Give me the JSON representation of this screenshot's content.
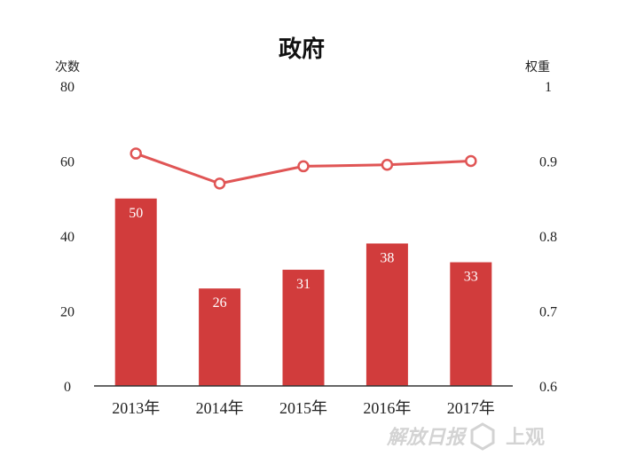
{
  "chart_data": {
    "type": "bar",
    "title": "政府",
    "categories": [
      "2013年",
      "2014年",
      "2015年",
      "2016年",
      "2017年"
    ],
    "series": [
      {
        "type": "bar",
        "axis": "left",
        "values": [
          50,
          26,
          31,
          38,
          33
        ]
      },
      {
        "type": "line",
        "axis": "right",
        "values": [
          0.91,
          0.87,
          0.893,
          0.895,
          0.9
        ]
      }
    ],
    "y_left": {
      "label": "次数",
      "ylim": [
        0,
        80
      ],
      "ticks": [
        "0",
        "20",
        "40",
        "60",
        "80"
      ]
    },
    "y_right": {
      "label": "权重",
      "ylim": [
        0.6,
        1.0
      ],
      "ticks": [
        "0.6",
        "0.7",
        "0.8",
        "0.9",
        "1"
      ]
    },
    "grid": false,
    "colors": {
      "bar": "#d13c3c",
      "line": "#e05555",
      "axis": "#333333"
    }
  },
  "watermark": {
    "logo_text": "解放日报",
    "brand_text": "上观"
  }
}
